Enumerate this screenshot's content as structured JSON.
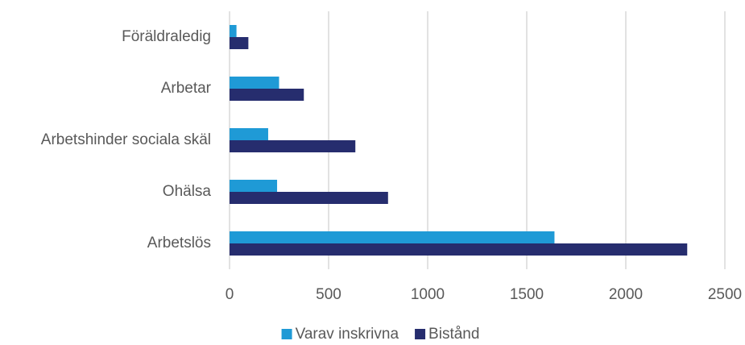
{
  "chart_data": {
    "type": "hbar",
    "categories": [
      "Föräldraledig",
      "Arbetar",
      "Arbetshinder sociala skäl",
      "Ohälsa",
      "Arbetslös"
    ],
    "series": [
      {
        "name": "Varav inskrivna",
        "color": "#1f9ad6",
        "values": [
          35,
          250,
          195,
          240,
          1640
        ]
      },
      {
        "name": "Bistånd",
        "color": "#262d6e",
        "values": [
          95,
          375,
          635,
          800,
          2310
        ]
      }
    ],
    "xlim": [
      0,
      2500
    ],
    "xticks": [
      0,
      500,
      1000,
      1500,
      2000,
      2500
    ],
    "grid": true,
    "legend": "bottom"
  }
}
